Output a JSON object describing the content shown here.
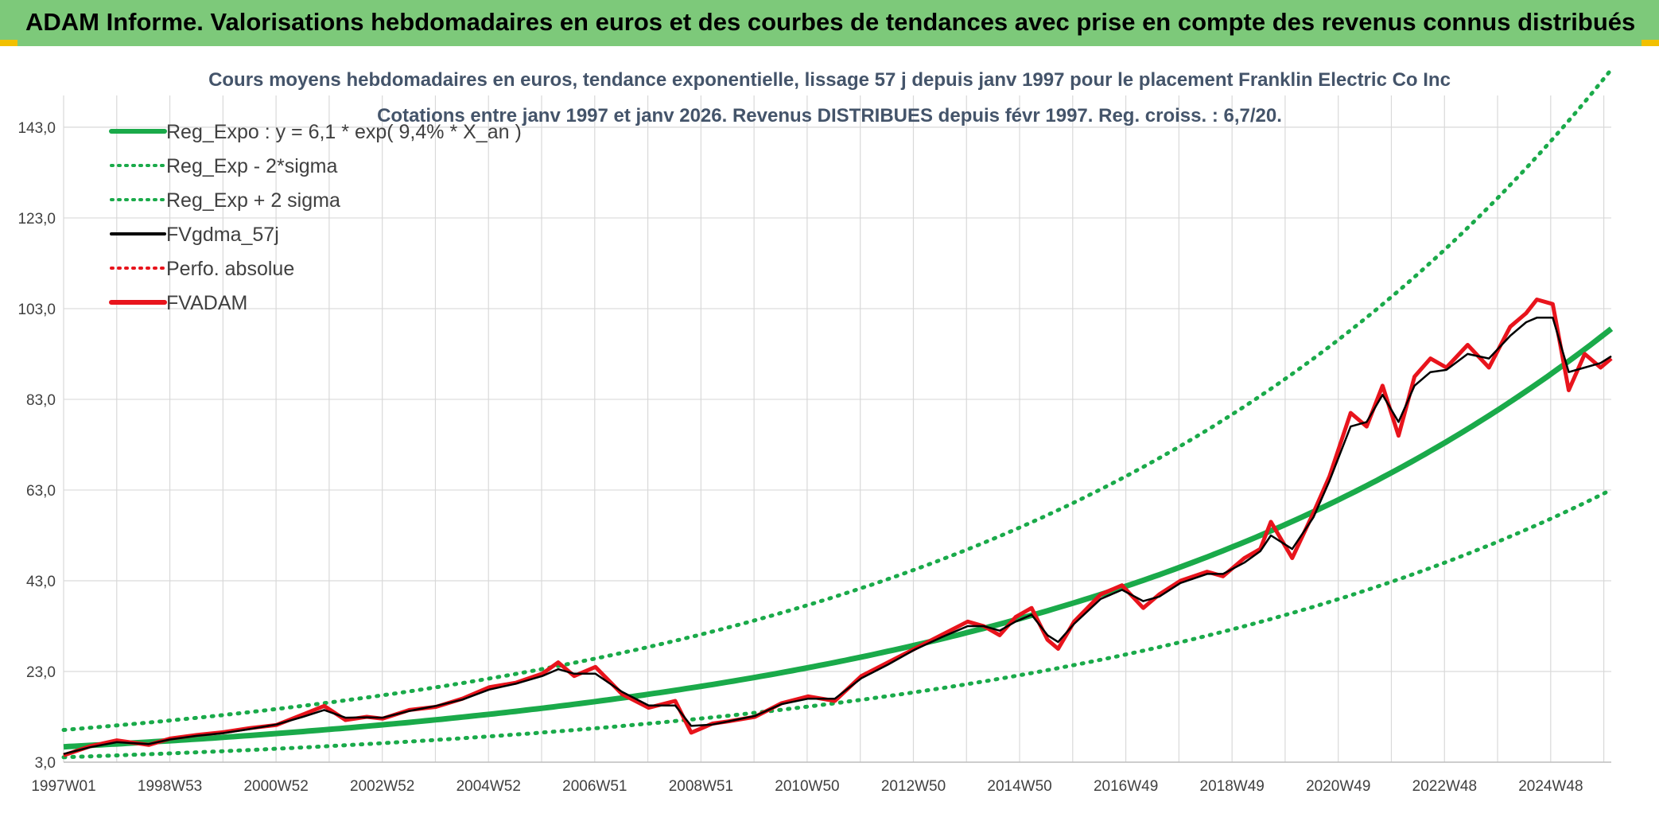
{
  "header": {
    "title": "ADAM Informe. Valorisations hebdomadaires en euros et des courbes de tendances avec prise en compte des revenus connus distribués"
  },
  "colors": {
    "banner": "#7dc97a",
    "trend": "#1aaa4a",
    "price": "#e8141c",
    "smooth": "#000000",
    "grid": "#d9d9d9"
  },
  "chart_data": {
    "type": "line",
    "title": "Cours moyens hebdomadaires en euros, tendance exponentielle, lissage 57 j depuis janv 1997 pour le placement Franklin Electric Co Inc",
    "subtitle": "Cotations entre janv 1997 et janv 2026. Revenus DISTRIBUES depuis févr 1997. Reg. croiss. : 6,7/20.",
    "xlabel": "",
    "ylabel": "",
    "x_ticks": [
      "1997W01",
      "1998W53",
      "2000W52",
      "2002W52",
      "2004W52",
      "2006W51",
      "2008W51",
      "2010W50",
      "2012W50",
      "2014W50",
      "2016W49",
      "2018W49",
      "2020W49",
      "2022W48",
      "2024W48"
    ],
    "y_ticks": [
      "3,0",
      "23,0",
      "43,0",
      "63,0",
      "83,0",
      "103,0",
      "123,0",
      "143,0"
    ],
    "xlim": [
      1997.0,
      2026.1
    ],
    "ylim": [
      3,
      150
    ],
    "grid": true,
    "legend_position": "top-left",
    "legend": [
      {
        "label": "Reg_Expo : y = 6,1 * exp( 9,4% *  X_an )",
        "style": "solid-thick",
        "color": "#1aaa4a"
      },
      {
        "label": "Reg_Exp - 2*sigma",
        "style": "dotted",
        "color": "#1aaa4a"
      },
      {
        "label": "Reg_Exp + 2 sigma",
        "style": "dotted",
        "color": "#1aaa4a"
      },
      {
        "label": "FVgdma_57j",
        "style": "solid",
        "color": "#000000"
      },
      {
        "label": "Perfo. absolue",
        "style": "dotted",
        "color": "#e8141c"
      },
      {
        "label": "FVADAM",
        "style": "solid-thick",
        "color": "#e8141c"
      }
    ],
    "trend": {
      "a": 6.1,
      "rate": 0.094,
      "lower_factor": 0.64,
      "upper_factor": 1.58
    },
    "series": [
      {
        "name": "FVADAM",
        "x": [
          1997.0,
          1997.5,
          1998.0,
          1998.6,
          1999.0,
          1999.5,
          2000.0,
          2000.5,
          2001.0,
          2001.5,
          2001.9,
          2002.3,
          2002.7,
          2003.0,
          2003.5,
          2004.0,
          2004.5,
          2005.0,
          2005.5,
          2006.0,
          2006.3,
          2006.6,
          2007.0,
          2007.5,
          2008.0,
          2008.5,
          2008.8,
          2009.2,
          2009.5,
          2010.0,
          2010.5,
          2011.0,
          2011.5,
          2012.0,
          2012.5,
          2013.0,
          2013.5,
          2014.0,
          2014.3,
          2014.6,
          2014.9,
          2015.2,
          2015.5,
          2015.7,
          2016.0,
          2016.5,
          2016.9,
          2017.3,
          2017.6,
          2018.0,
          2018.5,
          2018.8,
          2019.2,
          2019.5,
          2019.7,
          2020.1,
          2020.5,
          2020.8,
          2021.2,
          2021.5,
          2021.8,
          2022.1,
          2022.4,
          2022.7,
          2023.0,
          2023.4,
          2023.8,
          2024.2,
          2024.5,
          2024.7,
          2025.0,
          2025.3,
          2025.6,
          2025.9,
          2026.1
        ],
        "values": [
          4.5,
          6.5,
          7.8,
          6.8,
          8.2,
          9.0,
          9.6,
          10.5,
          11.2,
          13.5,
          15.4,
          12.3,
          13.0,
          12.6,
          14.5,
          15.2,
          17.0,
          19.5,
          20.5,
          22.5,
          25.0,
          22.0,
          24.0,
          18.0,
          15.0,
          16.5,
          9.5,
          11.5,
          12.0,
          13.0,
          16.0,
          17.5,
          16.5,
          22.0,
          25.0,
          28.0,
          31.0,
          34.0,
          33.0,
          31.0,
          35.0,
          37.0,
          30.0,
          28.0,
          34.0,
          40.0,
          42.0,
          37.0,
          40.0,
          43.0,
          45.0,
          44.0,
          48.0,
          50.0,
          56.0,
          48.0,
          58.0,
          66.0,
          80.0,
          77.0,
          86.0,
          75.0,
          88.0,
          92.0,
          90.0,
          95.0,
          90.0,
          99.0,
          102.0,
          105.0,
          104.0,
          85.0,
          93.0,
          90.0,
          92.0
        ]
      },
      {
        "name": "FVgdma_57j",
        "x": [
          1997.0,
          1997.5,
          1998.0,
          1998.6,
          1999.0,
          1999.5,
          2000.0,
          2000.5,
          2001.0,
          2001.5,
          2001.9,
          2002.3,
          2002.7,
          2003.0,
          2003.5,
          2004.0,
          2004.5,
          2005.0,
          2005.5,
          2006.0,
          2006.3,
          2006.6,
          2007.0,
          2007.5,
          2008.0,
          2008.5,
          2008.8,
          2009.2,
          2009.5,
          2010.0,
          2010.5,
          2011.0,
          2011.5,
          2012.0,
          2012.5,
          2013.0,
          2013.5,
          2014.0,
          2014.3,
          2014.6,
          2014.9,
          2015.2,
          2015.5,
          2015.7,
          2016.0,
          2016.5,
          2016.9,
          2017.3,
          2017.6,
          2018.0,
          2018.5,
          2018.8,
          2019.2,
          2019.5,
          2019.7,
          2020.1,
          2020.5,
          2020.8,
          2021.2,
          2021.5,
          2021.8,
          2022.1,
          2022.4,
          2022.7,
          2023.0,
          2023.4,
          2023.8,
          2024.2,
          2024.5,
          2024.7,
          2025.0,
          2025.3,
          2025.6,
          2025.9,
          2026.1
        ],
        "values": [
          4.8,
          6.3,
          7.4,
          7.0,
          8.0,
          8.8,
          9.4,
          10.3,
          11.3,
          13.0,
          14.5,
          12.8,
          12.9,
          12.8,
          14.3,
          15.4,
          16.8,
          19.0,
          20.3,
          22.0,
          23.5,
          22.5,
          22.5,
          18.5,
          15.5,
          15.5,
          11.0,
          11.3,
          12.0,
          13.2,
          15.8,
          17.0,
          17.0,
          21.5,
          24.5,
          27.8,
          30.5,
          33.0,
          33.0,
          32.0,
          34.0,
          35.5,
          31.0,
          29.5,
          33.5,
          39.0,
          41.0,
          38.5,
          39.5,
          42.5,
          44.5,
          44.5,
          47.0,
          49.5,
          53.0,
          50.0,
          57.0,
          65.0,
          77.0,
          78.0,
          84.0,
          78.0,
          86.0,
          89.0,
          89.5,
          93.0,
          92.0,
          97.0,
          100.0,
          101.0,
          101.0,
          89.0,
          90.0,
          91.0,
          92.5
        ]
      }
    ]
  }
}
